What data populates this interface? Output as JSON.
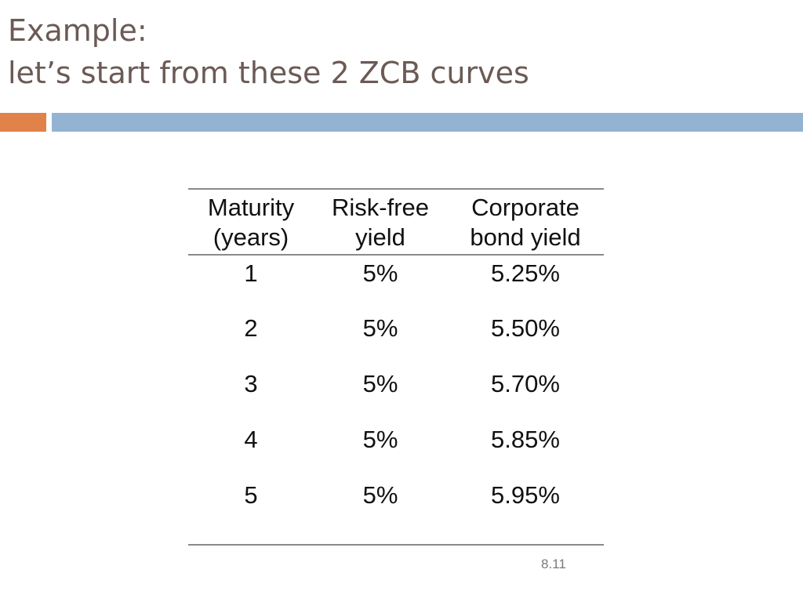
{
  "title": {
    "line1": "Example:",
    "line2": "let’s start from these 2 ZCB curves"
  },
  "table": {
    "headers": [
      {
        "line1": "Maturity",
        "line2": "(years)"
      },
      {
        "line1": "Risk-free",
        "line2": "yield"
      },
      {
        "line1": "Corporate",
        "line2": "bond yield"
      }
    ],
    "rows": [
      [
        "1",
        "5%",
        "5.25%"
      ],
      [
        "2",
        "5%",
        "5.50%"
      ],
      [
        "3",
        "5%",
        "5.70%"
      ],
      [
        "4",
        "5%",
        "5.85%"
      ],
      [
        "5",
        "5%",
        "5.95%"
      ]
    ]
  },
  "page_number": "8.11",
  "colors": {
    "title": "#6b5a55",
    "accent_orange": "#e0824a",
    "accent_blue": "#93b3d3",
    "rule": "#8a8a8a"
  }
}
